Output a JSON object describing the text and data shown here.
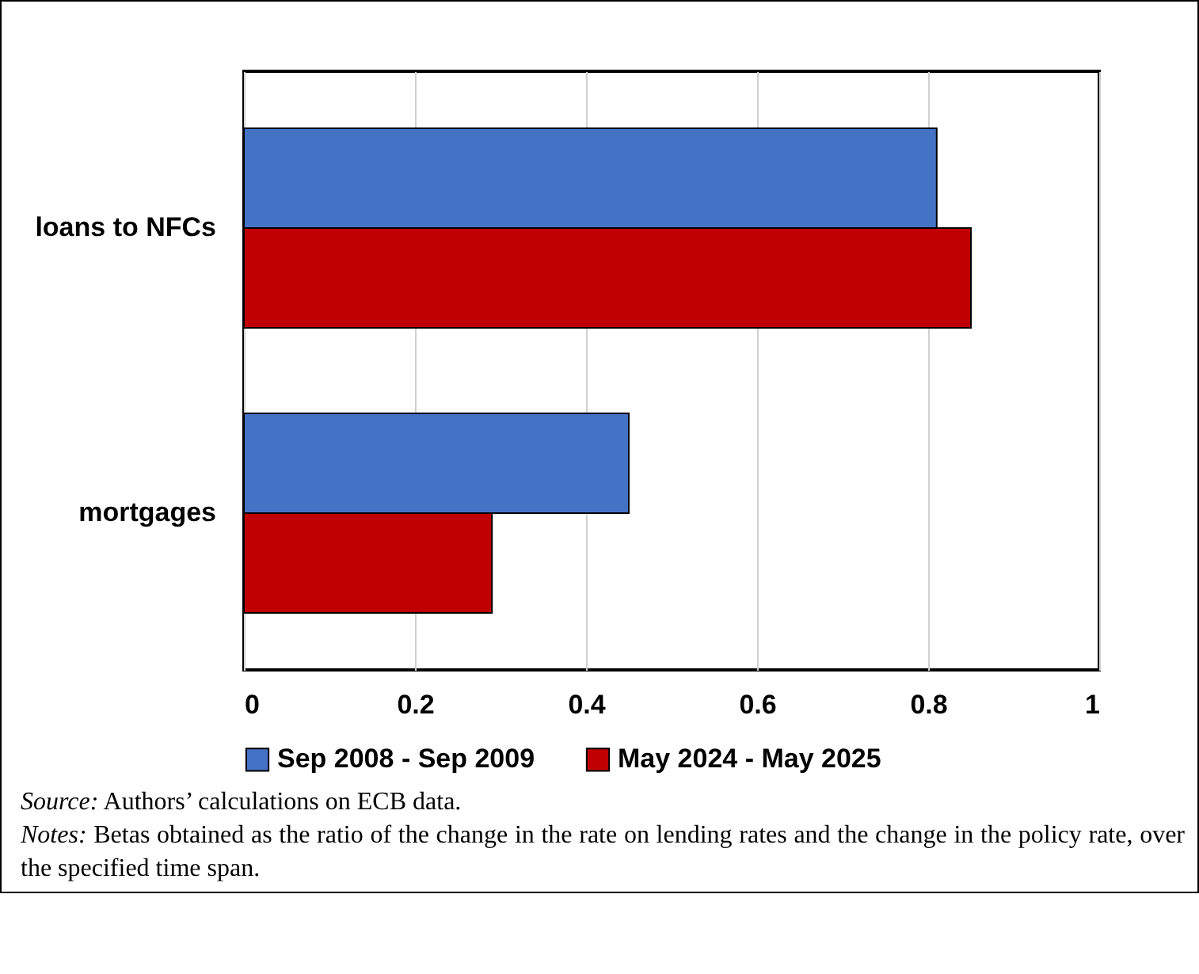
{
  "chart_data": {
    "type": "bar",
    "orientation": "horizontal",
    "categories": [
      "loans to NFCs",
      "mortgages"
    ],
    "series": [
      {
        "name": "Sep 2008 - Sep 2009",
        "color": "#4472c4",
        "values": [
          0.81,
          0.45
        ]
      },
      {
        "name": "May 2024 - May 2025",
        "color": "#c00000",
        "values": [
          0.85,
          0.29
        ]
      }
    ],
    "xlim": [
      0,
      1
    ],
    "xticks": [
      0,
      0.2,
      0.4,
      0.6,
      0.8,
      1
    ],
    "grid": "x",
    "legend": "bottom",
    "annotations": [
      "Source: Authors’ calculations on ECB data.",
      "Notes: Betas obtained as the ratio of the change in the rate on lending rates and the change in the policy rate, over the specified time span."
    ]
  }
}
